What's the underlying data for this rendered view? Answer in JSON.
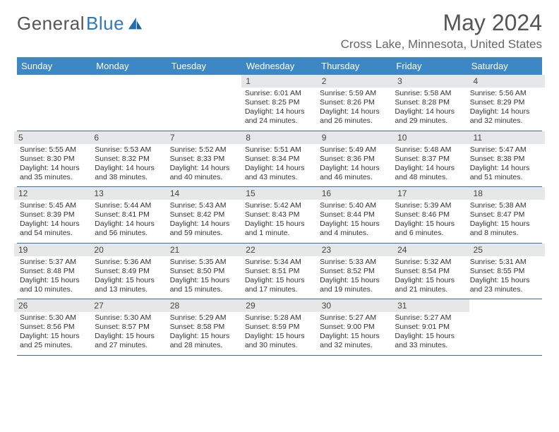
{
  "logo": {
    "word1": "General",
    "word2": "Blue"
  },
  "title": "May 2024",
  "location": "Cross Lake, Minnesota, United States",
  "colors": {
    "header_bg": "#3e87c5",
    "header_text": "#ffffff",
    "rule": "#3e6d99",
    "shade": "#e6e7e8",
    "text": "#333333",
    "title_text": "#555555",
    "logo_gray": "#555555",
    "logo_blue": "#2f79b9"
  },
  "dow": [
    "Sunday",
    "Monday",
    "Tuesday",
    "Wednesday",
    "Thursday",
    "Friday",
    "Saturday"
  ],
  "weeks": [
    [
      {
        "num": "",
        "lines": []
      },
      {
        "num": "",
        "lines": []
      },
      {
        "num": "",
        "lines": []
      },
      {
        "num": "1",
        "lines": [
          "Sunrise: 6:01 AM",
          "Sunset: 8:25 PM",
          "Daylight: 14 hours and 24 minutes."
        ]
      },
      {
        "num": "2",
        "lines": [
          "Sunrise: 5:59 AM",
          "Sunset: 8:26 PM",
          "Daylight: 14 hours and 26 minutes."
        ]
      },
      {
        "num": "3",
        "lines": [
          "Sunrise: 5:58 AM",
          "Sunset: 8:28 PM",
          "Daylight: 14 hours and 29 minutes."
        ]
      },
      {
        "num": "4",
        "lines": [
          "Sunrise: 5:56 AM",
          "Sunset: 8:29 PM",
          "Daylight: 14 hours and 32 minutes."
        ]
      }
    ],
    [
      {
        "num": "5",
        "lines": [
          "Sunrise: 5:55 AM",
          "Sunset: 8:30 PM",
          "Daylight: 14 hours and 35 minutes."
        ]
      },
      {
        "num": "6",
        "lines": [
          "Sunrise: 5:53 AM",
          "Sunset: 8:32 PM",
          "Daylight: 14 hours and 38 minutes."
        ]
      },
      {
        "num": "7",
        "lines": [
          "Sunrise: 5:52 AM",
          "Sunset: 8:33 PM",
          "Daylight: 14 hours and 40 minutes."
        ]
      },
      {
        "num": "8",
        "lines": [
          "Sunrise: 5:51 AM",
          "Sunset: 8:34 PM",
          "Daylight: 14 hours and 43 minutes."
        ]
      },
      {
        "num": "9",
        "lines": [
          "Sunrise: 5:49 AM",
          "Sunset: 8:36 PM",
          "Daylight: 14 hours and 46 minutes."
        ]
      },
      {
        "num": "10",
        "lines": [
          "Sunrise: 5:48 AM",
          "Sunset: 8:37 PM",
          "Daylight: 14 hours and 48 minutes."
        ]
      },
      {
        "num": "11",
        "lines": [
          "Sunrise: 5:47 AM",
          "Sunset: 8:38 PM",
          "Daylight: 14 hours and 51 minutes."
        ]
      }
    ],
    [
      {
        "num": "12",
        "lines": [
          "Sunrise: 5:45 AM",
          "Sunset: 8:39 PM",
          "Daylight: 14 hours and 54 minutes."
        ]
      },
      {
        "num": "13",
        "lines": [
          "Sunrise: 5:44 AM",
          "Sunset: 8:41 PM",
          "Daylight: 14 hours and 56 minutes."
        ]
      },
      {
        "num": "14",
        "lines": [
          "Sunrise: 5:43 AM",
          "Sunset: 8:42 PM",
          "Daylight: 14 hours and 59 minutes."
        ]
      },
      {
        "num": "15",
        "lines": [
          "Sunrise: 5:42 AM",
          "Sunset: 8:43 PM",
          "Daylight: 15 hours and 1 minute."
        ]
      },
      {
        "num": "16",
        "lines": [
          "Sunrise: 5:40 AM",
          "Sunset: 8:44 PM",
          "Daylight: 15 hours and 4 minutes."
        ]
      },
      {
        "num": "17",
        "lines": [
          "Sunrise: 5:39 AM",
          "Sunset: 8:46 PM",
          "Daylight: 15 hours and 6 minutes."
        ]
      },
      {
        "num": "18",
        "lines": [
          "Sunrise: 5:38 AM",
          "Sunset: 8:47 PM",
          "Daylight: 15 hours and 8 minutes."
        ]
      }
    ],
    [
      {
        "num": "19",
        "lines": [
          "Sunrise: 5:37 AM",
          "Sunset: 8:48 PM",
          "Daylight: 15 hours and 10 minutes."
        ]
      },
      {
        "num": "20",
        "lines": [
          "Sunrise: 5:36 AM",
          "Sunset: 8:49 PM",
          "Daylight: 15 hours and 13 minutes."
        ]
      },
      {
        "num": "21",
        "lines": [
          "Sunrise: 5:35 AM",
          "Sunset: 8:50 PM",
          "Daylight: 15 hours and 15 minutes."
        ]
      },
      {
        "num": "22",
        "lines": [
          "Sunrise: 5:34 AM",
          "Sunset: 8:51 PM",
          "Daylight: 15 hours and 17 minutes."
        ]
      },
      {
        "num": "23",
        "lines": [
          "Sunrise: 5:33 AM",
          "Sunset: 8:52 PM",
          "Daylight: 15 hours and 19 minutes."
        ]
      },
      {
        "num": "24",
        "lines": [
          "Sunrise: 5:32 AM",
          "Sunset: 8:54 PM",
          "Daylight: 15 hours and 21 minutes."
        ]
      },
      {
        "num": "25",
        "lines": [
          "Sunrise: 5:31 AM",
          "Sunset: 8:55 PM",
          "Daylight: 15 hours and 23 minutes."
        ]
      }
    ],
    [
      {
        "num": "26",
        "lines": [
          "Sunrise: 5:30 AM",
          "Sunset: 8:56 PM",
          "Daylight: 15 hours and 25 minutes."
        ]
      },
      {
        "num": "27",
        "lines": [
          "Sunrise: 5:30 AM",
          "Sunset: 8:57 PM",
          "Daylight: 15 hours and 27 minutes."
        ]
      },
      {
        "num": "28",
        "lines": [
          "Sunrise: 5:29 AM",
          "Sunset: 8:58 PM",
          "Daylight: 15 hours and 28 minutes."
        ]
      },
      {
        "num": "29",
        "lines": [
          "Sunrise: 5:28 AM",
          "Sunset: 8:59 PM",
          "Daylight: 15 hours and 30 minutes."
        ]
      },
      {
        "num": "30",
        "lines": [
          "Sunrise: 5:27 AM",
          "Sunset: 9:00 PM",
          "Daylight: 15 hours and 32 minutes."
        ]
      },
      {
        "num": "31",
        "lines": [
          "Sunrise: 5:27 AM",
          "Sunset: 9:01 PM",
          "Daylight: 15 hours and 33 minutes."
        ]
      },
      {
        "num": "",
        "lines": []
      }
    ]
  ]
}
